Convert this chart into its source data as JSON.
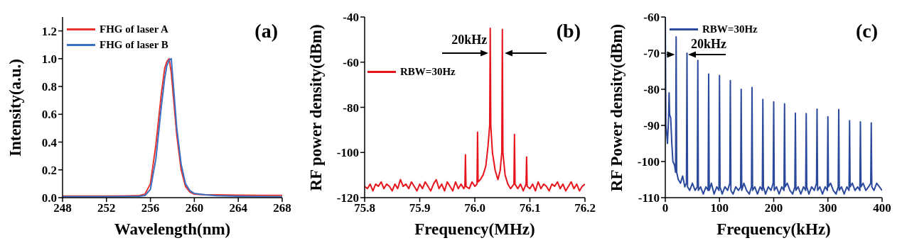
{
  "chart_data": [
    {
      "type": "line",
      "xlabel": "Wavelength(nm)",
      "ylabel": "Intensity(a.u.)",
      "xlim": [
        248,
        268
      ],
      "ylim": [
        0,
        1.3
      ],
      "xticks": [
        248,
        252,
        256,
        260,
        264,
        268
      ],
      "yticks": [
        {
          "value": 0,
          "label": "0.0"
        },
        {
          "value": 0.2,
          "label": "0.2"
        },
        {
          "value": 0.4,
          "label": "0.4"
        },
        {
          "value": 0.6,
          "label": "0.6"
        },
        {
          "value": 0.8,
          "label": "0.8"
        },
        {
          "value": 1,
          "label": "1.0"
        },
        {
          "value": 1.2,
          "label": "1.2"
        }
      ],
      "legend": "top left",
      "annotations": [
        "(a)"
      ],
      "x": [
        248,
        250,
        252,
        254,
        255,
        255.5,
        256,
        256.5,
        257,
        257.3,
        257.5,
        257.7,
        257.9,
        258.1,
        258.4,
        258.8,
        259.2,
        259.6,
        260,
        261,
        262,
        264,
        266,
        268
      ],
      "series": [
        {
          "name": "FHG of laser A",
          "color": "#e8322e",
          "values": [
            0.012,
            0.012,
            0.012,
            0.013,
            0.015,
            0.025,
            0.1,
            0.38,
            0.75,
            0.93,
            0.98,
            1.0,
            0.9,
            0.72,
            0.45,
            0.2,
            0.08,
            0.04,
            0.025,
            0.02,
            0.02,
            0.018,
            0.017,
            0.016
          ]
        },
        {
          "name": "FHG of laser B",
          "color": "#3a6fc4",
          "values": [
            0.008,
            0.008,
            0.008,
            0.009,
            0.01,
            0.015,
            0.06,
            0.28,
            0.66,
            0.86,
            0.95,
            0.99,
            1.0,
            0.8,
            0.5,
            0.24,
            0.1,
            0.05,
            0.03,
            0.02,
            0.014,
            0.01,
            0.008,
            0.007
          ]
        }
      ]
    },
    {
      "type": "line",
      "xlabel": "Frequency(MHz)",
      "ylabel": "RF power density(dBm)",
      "xlim": [
        75.8,
        76.2
      ],
      "ylim": [
        -120,
        -40
      ],
      "xticks": [
        75.8,
        75.9,
        {
          "value": 76,
          "label": "76.0"
        },
        76.1,
        76.2
      ],
      "yticks": [
        -120,
        -100,
        -80,
        -60,
        -40
      ],
      "legend": "left",
      "annotations": [
        "(b)",
        "20kHz"
      ],
      "x": [
        75.8,
        75.805,
        75.81,
        75.815,
        75.82,
        75.825,
        75.83,
        75.835,
        75.84,
        75.845,
        75.85,
        75.855,
        75.86,
        75.865,
        75.87,
        75.875,
        75.88,
        75.885,
        75.89,
        75.895,
        75.9,
        75.905,
        75.91,
        75.915,
        75.92,
        75.925,
        75.93,
        75.935,
        75.94,
        75.945,
        75.95,
        75.955,
        75.96,
        75.965,
        75.97,
        75.975,
        75.98,
        75.982,
        75.983,
        75.984,
        75.99,
        75.995,
        76.0,
        76.004,
        76.005,
        76.006,
        76.01,
        76.015,
        76.02,
        76.024,
        76.027,
        76.028,
        76.029,
        76.032,
        76.037,
        76.042,
        76.046,
        76.049,
        76.05,
        76.051,
        76.055,
        76.06,
        76.065,
        76.071,
        76.072,
        76.073,
        76.078,
        76.083,
        76.088,
        76.093,
        76.094,
        76.095,
        76.1,
        76.105,
        76.11,
        76.115,
        76.12,
        76.125,
        76.13,
        76.135,
        76.14,
        76.145,
        76.15,
        76.155,
        76.16,
        76.165,
        76.17,
        76.175,
        76.18,
        76.185,
        76.19,
        76.195,
        76.2
      ],
      "series": [
        {
          "name": "RBW=30Hz",
          "color": "#e8141c",
          "values": [
            -115,
            -116,
            -114,
            -117,
            -114,
            -115,
            -113,
            -116,
            -114,
            -115,
            -117,
            -114,
            -116,
            -112,
            -115,
            -114,
            -116,
            -113,
            -115,
            -117,
            -114,
            -116,
            -113,
            -115,
            -117,
            -114,
            -112,
            -116,
            -114,
            -117,
            -113,
            -115,
            -117,
            -113,
            -116,
            -114,
            -116,
            -115,
            -101,
            -115,
            -116,
            -113,
            -115,
            -114,
            -91,
            -113,
            -112,
            -110,
            -106,
            -97,
            -88,
            -45,
            -88,
            -100,
            -108,
            -112,
            -108,
            -100,
            -45.5,
            -100,
            -110,
            -114,
            -116,
            -114,
            -92,
            -114,
            -116,
            -114,
            -117,
            -114,
            -102,
            -115,
            -116,
            -114,
            -117,
            -113,
            -116,
            -114,
            -115,
            -117,
            -114,
            -115,
            -113,
            -116,
            -114,
            -117,
            -115,
            -113,
            -116,
            -114,
            -117,
            -115,
            -114
          ]
        }
      ]
    },
    {
      "type": "line",
      "xlabel": "Frequency(kHz)",
      "ylabel": "RF Power density(dBm)",
      "xlim": [
        0,
        400
      ],
      "ylim": [
        -110,
        -60
      ],
      "xticks": [
        0,
        100,
        200,
        300,
        400
      ],
      "yticks": [
        -110,
        -100,
        -90,
        -80,
        -70,
        -60
      ],
      "legend": "top left",
      "annotations": [
        "(c)",
        "20kHz"
      ],
      "x": [
        0,
        1,
        3,
        4,
        6,
        7,
        8,
        10,
        12,
        14,
        17,
        19,
        20,
        21,
        24,
        28,
        32,
        36,
        39,
        40,
        41,
        45,
        50,
        55,
        59,
        60,
        61,
        65,
        70,
        75,
        79,
        80,
        81,
        85,
        90,
        95,
        99,
        100,
        101,
        105,
        110,
        115,
        119,
        120,
        121,
        125,
        130,
        135,
        139,
        140,
        141,
        145,
        150,
        155,
        159,
        160,
        161,
        165,
        170,
        175,
        179,
        180,
        181,
        185,
        190,
        195,
        199,
        200,
        201,
        205,
        210,
        215,
        219,
        220,
        221,
        225,
        230,
        235,
        239,
        240,
        241,
        245,
        250,
        255,
        259,
        260,
        261,
        265,
        270,
        275,
        279,
        280,
        281,
        285,
        290,
        295,
        299,
        300,
        301,
        305,
        310,
        315,
        319,
        320,
        321,
        325,
        330,
        335,
        339,
        340,
        341,
        345,
        350,
        355,
        359,
        360,
        361,
        365,
        370,
        375,
        379,
        380,
        381,
        385,
        390,
        395,
        400
      ],
      "series": [
        {
          "name": "RBW=30Hz",
          "color": "#2b4a9e",
          "values": [
            -60,
            -90,
            -93,
            -95,
            -88,
            -81,
            -87,
            -88,
            -95,
            -100,
            -101,
            -103,
            -65.5,
            -103,
            -105,
            -106,
            -104,
            -107,
            -106,
            -70,
            -107,
            -108,
            -106,
            -108,
            -107,
            -72,
            -108,
            -107,
            -109,
            -107,
            -108,
            -75.8,
            -108,
            -106,
            -109,
            -107,
            -108,
            -76.2,
            -107,
            -109,
            -107,
            -108,
            -106,
            -77.6,
            -108,
            -109,
            -107,
            -108,
            -107,
            -80,
            -108,
            -106,
            -108,
            -109,
            -107,
            -79.5,
            -108,
            -107,
            -109,
            -107,
            -108,
            -82.8,
            -107,
            -109,
            -107,
            -108,
            -106,
            -83.5,
            -108,
            -107,
            -109,
            -107,
            -108,
            -84,
            -107,
            -106,
            -108,
            -109,
            -107,
            -86.6,
            -108,
            -107,
            -109,
            -107,
            -108,
            -86.7,
            -107,
            -109,
            -107,
            -108,
            -106,
            -85.5,
            -108,
            -107,
            -109,
            -107,
            -108,
            -87.6,
            -107,
            -106,
            -108,
            -109,
            -107,
            -85.6,
            -108,
            -107,
            -109,
            -107,
            -108,
            -88.7,
            -107,
            -106,
            -108,
            -107,
            -108,
            -89,
            -107,
            -106,
            -108,
            -107,
            -106,
            -89.3,
            -107,
            -108,
            -106,
            -107,
            -108
          ]
        }
      ]
    }
  ]
}
